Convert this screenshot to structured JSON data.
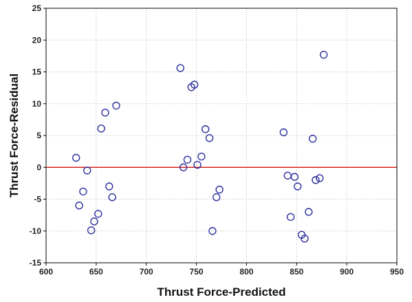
{
  "chart_data": {
    "type": "scatter",
    "title": "",
    "xlabel": "Thrust Force-Predicted",
    "ylabel": "Thrust Force-Residual",
    "xlim": [
      600,
      950
    ],
    "ylim": [
      -15,
      25
    ],
    "xticks": [
      600,
      650,
      700,
      750,
      800,
      850,
      900,
      950
    ],
    "yticks": [
      -15,
      -10,
      -5,
      0,
      5,
      10,
      15,
      20,
      25
    ],
    "grid": true,
    "reference_line": {
      "y": 0,
      "color": "#d62020"
    },
    "marker_color": "#2b2f9e",
    "series": [
      {
        "points": [
          [
            630,
            1.5
          ],
          [
            633,
            -6.0
          ],
          [
            637,
            -3.8
          ],
          [
            641,
            -0.5
          ],
          [
            645,
            -9.9
          ],
          [
            648,
            -8.5
          ],
          [
            652,
            -7.3
          ],
          [
            655,
            6.1
          ],
          [
            659,
            8.6
          ],
          [
            663,
            -3.0
          ],
          [
            666,
            -4.7
          ],
          [
            670,
            9.7
          ],
          [
            734,
            15.6
          ],
          [
            737,
            0.0
          ],
          [
            741,
            1.2
          ],
          [
            745,
            12.6
          ],
          [
            748,
            13.0
          ],
          [
            751,
            0.4
          ],
          [
            755,
            1.7
          ],
          [
            759,
            6.0
          ],
          [
            763,
            4.6
          ],
          [
            766,
            -10.0
          ],
          [
            770,
            -4.7
          ],
          [
            773,
            -3.5
          ],
          [
            837,
            5.5
          ],
          [
            841,
            -1.3
          ],
          [
            844,
            -7.8
          ],
          [
            848,
            -1.5
          ],
          [
            851,
            -3.0
          ],
          [
            855,
            -10.6
          ],
          [
            858,
            -11.2
          ],
          [
            862,
            -7.0
          ],
          [
            866,
            4.5
          ],
          [
            869,
            -2.0
          ],
          [
            873,
            -1.7
          ],
          [
            877,
            17.7
          ]
        ]
      }
    ]
  }
}
